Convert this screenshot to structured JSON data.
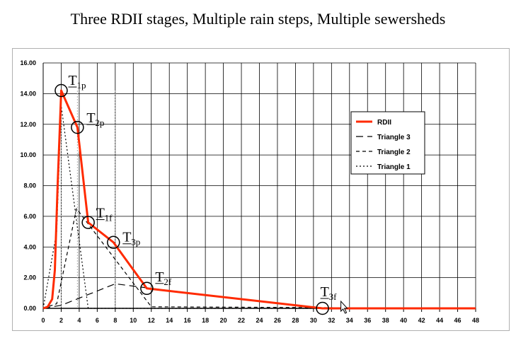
{
  "title": "Three RDII stages, Multiple rain steps, Multiple sewersheds",
  "chart_data": {
    "type": "line",
    "title": "Three RDII stages, Multiple rain steps, Multiple sewersheds",
    "xlabel": "",
    "ylabel": "",
    "xlim": [
      0,
      48
    ],
    "ylim": [
      0,
      16
    ],
    "x_ticks": [
      "0",
      "2",
      "4",
      "6",
      "8",
      "10",
      "12",
      "14",
      "16",
      "18",
      "20",
      "22",
      "24",
      "26",
      "28",
      "30",
      "32",
      "34",
      "36",
      "38",
      "40",
      "42",
      "44",
      "46",
      "48"
    ],
    "y_ticks": [
      "0.00",
      "2.00",
      "4.00",
      "6.00",
      "8.00",
      "10.00",
      "12.00",
      "14.00",
      "16.00"
    ],
    "grid": true,
    "legend_position": "right",
    "series": [
      {
        "name": "RDII",
        "color": "#ff2a00",
        "dash": "solid",
        "points": [
          [
            0,
            0
          ],
          [
            0.5,
            0.1
          ],
          [
            1,
            0.6
          ],
          [
            1.3,
            2.5
          ],
          [
            1.6,
            8
          ],
          [
            2,
            14.2
          ],
          [
            3.8,
            11.8
          ],
          [
            5,
            5.6
          ],
          [
            7.8,
            4.3
          ],
          [
            11.5,
            1.3
          ],
          [
            31,
            0
          ],
          [
            48,
            0
          ]
        ]
      },
      {
        "name": "Triangle 3",
        "color": "#000000",
        "dash": "long",
        "points": [
          [
            0,
            0
          ],
          [
            2,
            0.2
          ],
          [
            8,
            1.6
          ],
          [
            12,
            1.3
          ],
          [
            31,
            0
          ],
          [
            48,
            0
          ]
        ]
      },
      {
        "name": "Triangle 2",
        "color": "#000000",
        "dash": "medium",
        "points": [
          [
            0,
            0
          ],
          [
            1.5,
            0.3
          ],
          [
            3.7,
            6.5
          ],
          [
            12,
            0.1
          ],
          [
            48,
            0
          ]
        ]
      },
      {
        "name": "Triangle 1",
        "color": "#000000",
        "dash": "short",
        "points": [
          [
            0,
            0
          ],
          [
            1.5,
            5
          ],
          [
            2,
            13.2
          ],
          [
            5,
            0
          ],
          [
            48,
            0
          ]
        ]
      }
    ],
    "markers": [
      {
        "label": "T",
        "sub": "1p",
        "x": 2,
        "y": 14.2
      },
      {
        "label": "T",
        "sub": "2p",
        "x": 3.8,
        "y": 11.8
      },
      {
        "label": "T",
        "sub": "1f",
        "x": 5,
        "y": 5.6
      },
      {
        "label": "T",
        "sub": "3p",
        "x": 7.8,
        "y": 4.3
      },
      {
        "label": "T",
        "sub": "2f",
        "x": 11.5,
        "y": 1.3
      },
      {
        "label": "T",
        "sub": "3f",
        "x": 31,
        "y": 0
      }
    ],
    "guide_lines_x": [
      2,
      3.8,
      8
    ]
  }
}
